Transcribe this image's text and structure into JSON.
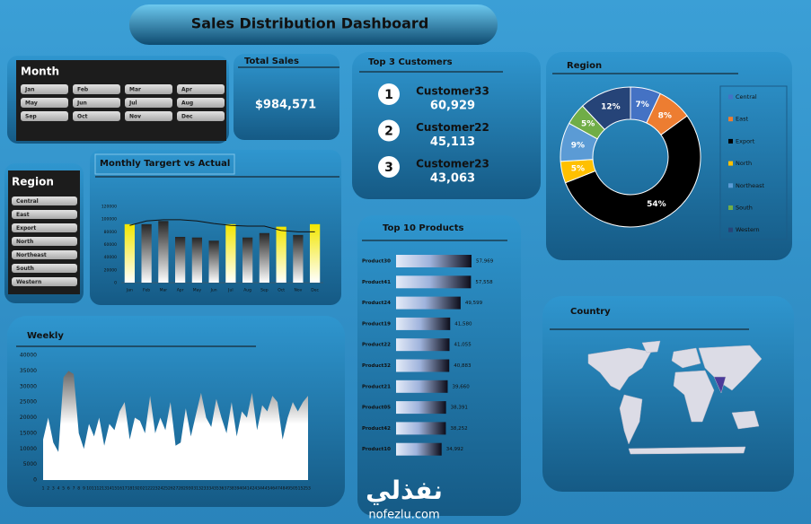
{
  "title": "Sales Distribution Dashboard",
  "month_slicer": {
    "title": "Month",
    "items": [
      "Jan",
      "Feb",
      "Mar",
      "Apr",
      "May",
      "Jun",
      "Jul",
      "Aug",
      "Sep",
      "Oct",
      "Nov",
      "Dec"
    ]
  },
  "region_slicer": {
    "title": "Region",
    "items": [
      "Central",
      "East",
      "Export",
      "North",
      "Northeast",
      "South",
      "Western"
    ]
  },
  "total_sales": {
    "label": "Total Sales",
    "value": "$984,571"
  },
  "top_customers": {
    "title": "Top 3 Customers",
    "items": [
      {
        "rank": 1,
        "name": "Customer33",
        "value": "60,929"
      },
      {
        "rank": 2,
        "name": "Customer22",
        "value": "45,113"
      },
      {
        "rank": 3,
        "name": "Customer23",
        "value": "43,063"
      }
    ]
  },
  "country": {
    "title": "Country"
  },
  "watermark": {
    "arabic": "نفذلي",
    "latin": "nofezlu.com"
  },
  "chart_data": [
    {
      "type": "combo",
      "title": "Monthly Targert vs Actual",
      "categories": [
        "Jan",
        "Feb",
        "Mar",
        "Apr",
        "May",
        "Jun",
        "Jul",
        "Aug",
        "Sep",
        "Oct",
        "Nov",
        "Dec"
      ],
      "series": [
        {
          "type": "bar",
          "values": [
            92000,
            92000,
            97000,
            72000,
            71000,
            66000,
            92000,
            71000,
            78000,
            88000,
            75000,
            92000
          ],
          "colors": [
            "#f2e600",
            "#262626",
            "#262626",
            "#262626",
            "#262626",
            "#262626",
            "#f2e600",
            "#262626",
            "#262626",
            "#f2e600",
            "#262626",
            "#f2e600"
          ]
        },
        {
          "type": "line",
          "values": [
            90000,
            97000,
            99000,
            99000,
            97000,
            93000,
            90000,
            89000,
            89000,
            82000,
            80000,
            80000
          ],
          "color": "#111111"
        }
      ],
      "ylim": [
        0,
        120000
      ],
      "yticks": [
        0,
        20000,
        40000,
        60000,
        80000,
        100000,
        120000
      ]
    },
    {
      "type": "donut",
      "title": "Region",
      "categories": [
        "Central",
        "East",
        "Export",
        "North",
        "Northeast",
        "South",
        "Western"
      ],
      "values": [
        7,
        8,
        54,
        5,
        9,
        5,
        12
      ],
      "value_labels": [
        "7%",
        "8%",
        "54%",
        "5%",
        "9%",
        "5%",
        "12%"
      ],
      "colors": [
        "#4472c4",
        "#ed7d31",
        "#000000",
        "#ffc000",
        "#5b9bd5",
        "#70ad47",
        "#264478"
      ],
      "legend": "right"
    },
    {
      "type": "barh",
      "title": "Top 10 Products",
      "categories": [
        "Product30",
        "Product41",
        "Product24",
        "Product19",
        "Product22",
        "Product32",
        "Product21",
        "Product05",
        "Product42",
        "Product10"
      ],
      "values": [
        57969,
        57558,
        49599,
        41580,
        41055,
        40883,
        39660,
        38391,
        38252,
        34992
      ],
      "value_labels": [
        "57,969",
        "57,558",
        "49,599",
        "41,580",
        "41,055",
        "40,883",
        "39,660",
        "38,391",
        "38,252",
        "34,992"
      ],
      "color": "#0d0d1a"
    },
    {
      "type": "area",
      "title": "Weekly",
      "x": [
        1,
        2,
        3,
        4,
        5,
        6,
        7,
        8,
        9,
        10,
        11,
        12,
        13,
        14,
        15,
        16,
        17,
        18,
        19,
        20,
        21,
        22,
        23,
        24,
        25,
        26,
        27,
        28,
        29,
        30,
        31,
        32,
        33,
        34,
        35,
        36,
        37,
        38,
        39,
        40,
        41,
        42,
        43,
        44,
        45,
        46,
        47,
        48,
        49,
        50,
        51,
        52,
        53
      ],
      "values": [
        13000,
        20000,
        12000,
        9000,
        33000,
        35000,
        34000,
        15000,
        10000,
        18000,
        14000,
        20000,
        11000,
        18000,
        16000,
        22000,
        25000,
        13000,
        20000,
        19000,
        15000,
        27000,
        15000,
        20000,
        16000,
        25000,
        11000,
        12000,
        23000,
        14000,
        21000,
        28000,
        20000,
        17000,
        26000,
        20000,
        15000,
        25000,
        14000,
        22000,
        20000,
        28000,
        16000,
        24000,
        22000,
        27000,
        25000,
        13000,
        20000,
        25000,
        22000,
        25000,
        27000
      ],
      "color": "#3a3a3a",
      "xlim": [
        1,
        53
      ],
      "ylim": [
        0,
        40000
      ],
      "yticks": [
        0,
        5000,
        10000,
        15000,
        20000,
        25000,
        30000,
        35000,
        40000
      ]
    }
  ]
}
